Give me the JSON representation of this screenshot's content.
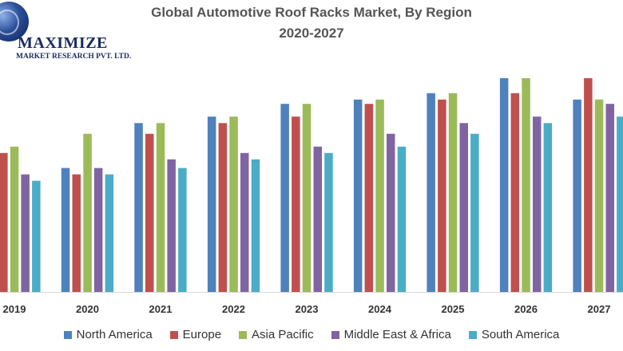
{
  "logo": {
    "brand": "MAXIMIZE",
    "subtitle": "MARKET RESEARCH PVT. LTD.",
    "icon": "globe-icon"
  },
  "chart_data": {
    "type": "bar",
    "title": "Global Automotive Roof Racks Market, By Region",
    "subtitle": "2020-2027",
    "xlabel": "",
    "ylabel": "",
    "grid": false,
    "legend_position": "bottom",
    "categories": [
      "2019",
      "2020",
      "2021",
      "2022",
      "2023",
      "2024",
      "2025",
      "2026",
      "2027"
    ],
    "ylim": [
      0,
      100
    ],
    "series": [
      {
        "name": "North America",
        "color": "#4f81bd",
        "values": [
          68,
          58,
          79,
          82,
          88,
          90,
          93,
          100,
          90
        ]
      },
      {
        "name": "Europe",
        "color": "#c0504d",
        "values": [
          65,
          55,
          74,
          79,
          82,
          88,
          90,
          93,
          100
        ]
      },
      {
        "name": "Asia Pacific",
        "color": "#9bbb59",
        "values": [
          68,
          74,
          79,
          82,
          88,
          90,
          93,
          100,
          90
        ]
      },
      {
        "name": "Middle East & Africa",
        "color": "#8064a2",
        "values": [
          55,
          58,
          62,
          65,
          68,
          74,
          79,
          82,
          88
        ]
      },
      {
        "name": "South America",
        "color": "#4bacc6",
        "values": [
          52,
          55,
          58,
          62,
          65,
          68,
          74,
          79,
          82
        ]
      }
    ]
  }
}
